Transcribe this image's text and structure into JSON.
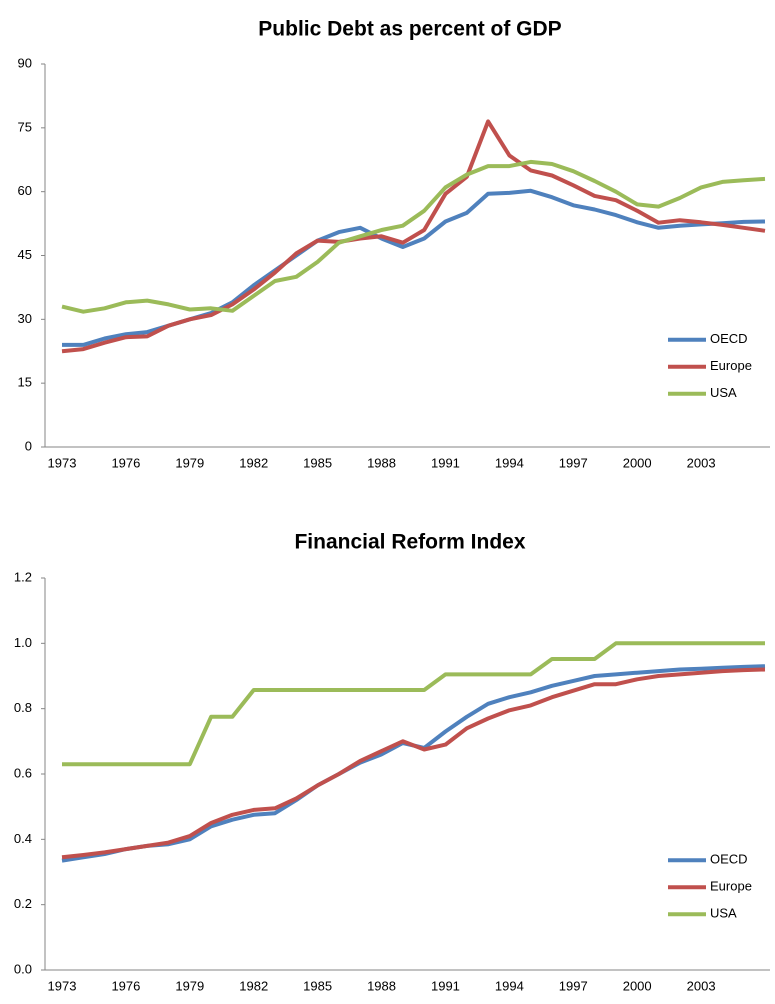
{
  "chart_data": [
    {
      "type": "line",
      "title": "Public Debt as percent of GDP",
      "categories": [
        "1973",
        null,
        null,
        "1976",
        null,
        null,
        "1979",
        null,
        null,
        "1982",
        null,
        null,
        "1985",
        null,
        null,
        "1988",
        null,
        null,
        "1991",
        null,
        null,
        "1994",
        null,
        null,
        "1997",
        null,
        null,
        "2000",
        null,
        null,
        "2003",
        null,
        null,
        null
      ],
      "ylim": [
        0,
        90
      ],
      "yticks": [
        0,
        15,
        30,
        45,
        60,
        75,
        90
      ],
      "legend": "right",
      "series": [
        {
          "name": "OECD",
          "color": "#4f81bd",
          "values": [
            24,
            24,
            25.5,
            26.5,
            27,
            28.5,
            30,
            31.5,
            34,
            38,
            41.5,
            45,
            48.5,
            50.5,
            51.5,
            49,
            47,
            49,
            53,
            55,
            59.5,
            59.7,
            60.2,
            58.7,
            56.8,
            55.8,
            54.5,
            52.8,
            51.5,
            52,
            52.3,
            52.6,
            52.9,
            53
          ]
        },
        {
          "name": "Europe",
          "color": "#c0504d",
          "values": [
            22.5,
            23,
            24.5,
            25.8,
            26,
            28.5,
            30,
            31,
            33.5,
            37,
            41,
            45.5,
            48.5,
            48.2,
            49,
            49.5,
            48,
            51,
            59.5,
            63.5,
            76.5,
            68.5,
            65,
            63.8,
            61.5,
            59,
            58,
            55.5,
            52.7,
            53.3,
            52.8,
            52.2,
            51.5,
            50.8
          ]
        },
        {
          "name": "USA",
          "color": "#9bbb59",
          "values": [
            33,
            31.8,
            32.6,
            34,
            34.4,
            33.5,
            32.3,
            32.6,
            32,
            35.5,
            39,
            40,
            43.5,
            48,
            49.5,
            51,
            52,
            55.5,
            61,
            64,
            66,
            66,
            67,
            66.5,
            64.8,
            62.5,
            60,
            57,
            56.5,
            58.5,
            61,
            62.3,
            62.7,
            63
          ]
        }
      ]
    },
    {
      "type": "line",
      "title": "Financial Reform Index",
      "categories": [
        "1973",
        null,
        null,
        "1976",
        null,
        null,
        "1979",
        null,
        null,
        "1982",
        null,
        null,
        "1985",
        null,
        null,
        "1988",
        null,
        null,
        "1991",
        null,
        null,
        "1994",
        null,
        null,
        "1997",
        null,
        null,
        "2000",
        null,
        null,
        "2003",
        null,
        null,
        null
      ],
      "ylim": [
        0,
        1.2
      ],
      "yticks": [
        {
          "value": 0,
          "label": "0.0"
        },
        0.2,
        0.4,
        0.6,
        0.8,
        {
          "value": 1,
          "label": "1.0"
        },
        1.2
      ],
      "legend": "right",
      "series": [
        {
          "name": "OECD",
          "color": "#4f81bd",
          "values": [
            0.335,
            0.345,
            0.355,
            0.37,
            0.38,
            0.385,
            0.4,
            0.44,
            0.46,
            0.475,
            0.48,
            0.52,
            0.565,
            0.6,
            0.635,
            0.66,
            0.695,
            0.68,
            0.73,
            0.775,
            0.815,
            0.835,
            0.85,
            0.87,
            0.885,
            0.9,
            0.905,
            0.91,
            0.915,
            0.92,
            0.922,
            0.925,
            0.928,
            0.93
          ]
        },
        {
          "name": "Europe",
          "color": "#c0504d",
          "values": [
            0.345,
            0.352,
            0.36,
            0.37,
            0.38,
            0.39,
            0.41,
            0.45,
            0.475,
            0.49,
            0.495,
            0.525,
            0.565,
            0.6,
            0.64,
            0.67,
            0.7,
            0.675,
            0.69,
            0.74,
            0.77,
            0.795,
            0.81,
            0.835,
            0.855,
            0.875,
            0.875,
            0.89,
            0.9,
            0.905,
            0.91,
            0.915,
            0.918,
            0.92
          ]
        },
        {
          "name": "USA",
          "color": "#9bbb59",
          "values": [
            0.63,
            0.63,
            0.63,
            0.63,
            0.63,
            0.63,
            0.63,
            0.775,
            0.775,
            0.857,
            0.857,
            0.857,
            0.857,
            0.857,
            0.857,
            0.857,
            0.857,
            0.857,
            0.905,
            0.905,
            0.905,
            0.905,
            0.905,
            0.952,
            0.952,
            0.952,
            1,
            1,
            1,
            1,
            1,
            1,
            1,
            1
          ]
        }
      ]
    }
  ]
}
